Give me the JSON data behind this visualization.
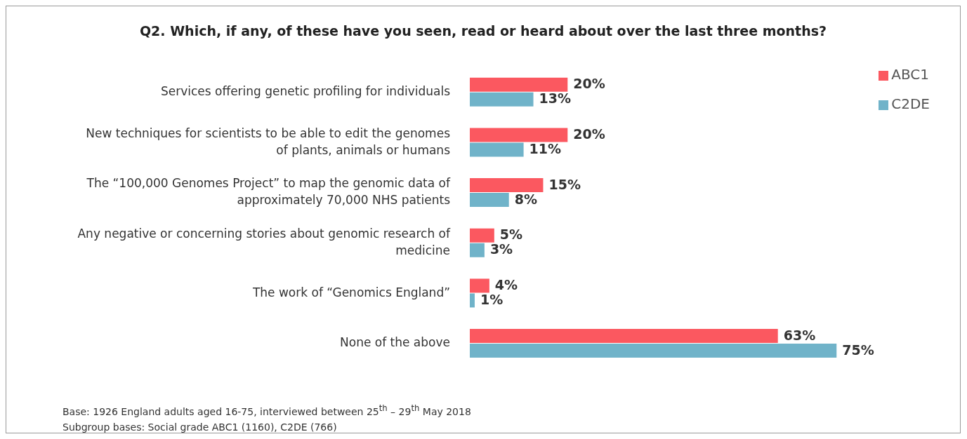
{
  "chart_data": {
    "type": "bar",
    "orientation": "horizontal",
    "title": "Q2. Which, if any, of these have you seen, read or heard about over the last three months?",
    "categories": [
      "Services offering genetic profiling for individuals",
      "New techniques for scientists to be able to edit the genomes of plants, animals or humans",
      "The “100,000 Genomes Project” to map the genomic data of approximately 70,000 NHS patients",
      "Any negative or concerning stories about genomic research of medicine",
      "The work of “Genomics England”",
      "None of the above"
    ],
    "series": [
      {
        "name": "ABC1",
        "color": "#fb5860",
        "values": [
          20,
          20,
          15,
          5,
          4,
          63
        ],
        "value_labels": [
          "20%",
          "20%",
          "15%",
          "5%",
          "4%",
          "63%"
        ]
      },
      {
        "name": "C2DE",
        "color": "#70b3c9",
        "values": [
          13,
          11,
          8,
          3,
          1,
          75
        ],
        "value_labels": [
          "13%",
          "11%",
          "8%",
          "3%",
          "1%",
          "75%"
        ]
      }
    ],
    "legend": "top right",
    "grid": false,
    "annotations": [
      "Base: 1926 England adults aged 16-75, interviewed between 25$^{th}$ – 29$^{th}$ May 2018",
      "Subgroup bases: Social grade ABC1 (1160), C2DE (766)"
    ]
  }
}
